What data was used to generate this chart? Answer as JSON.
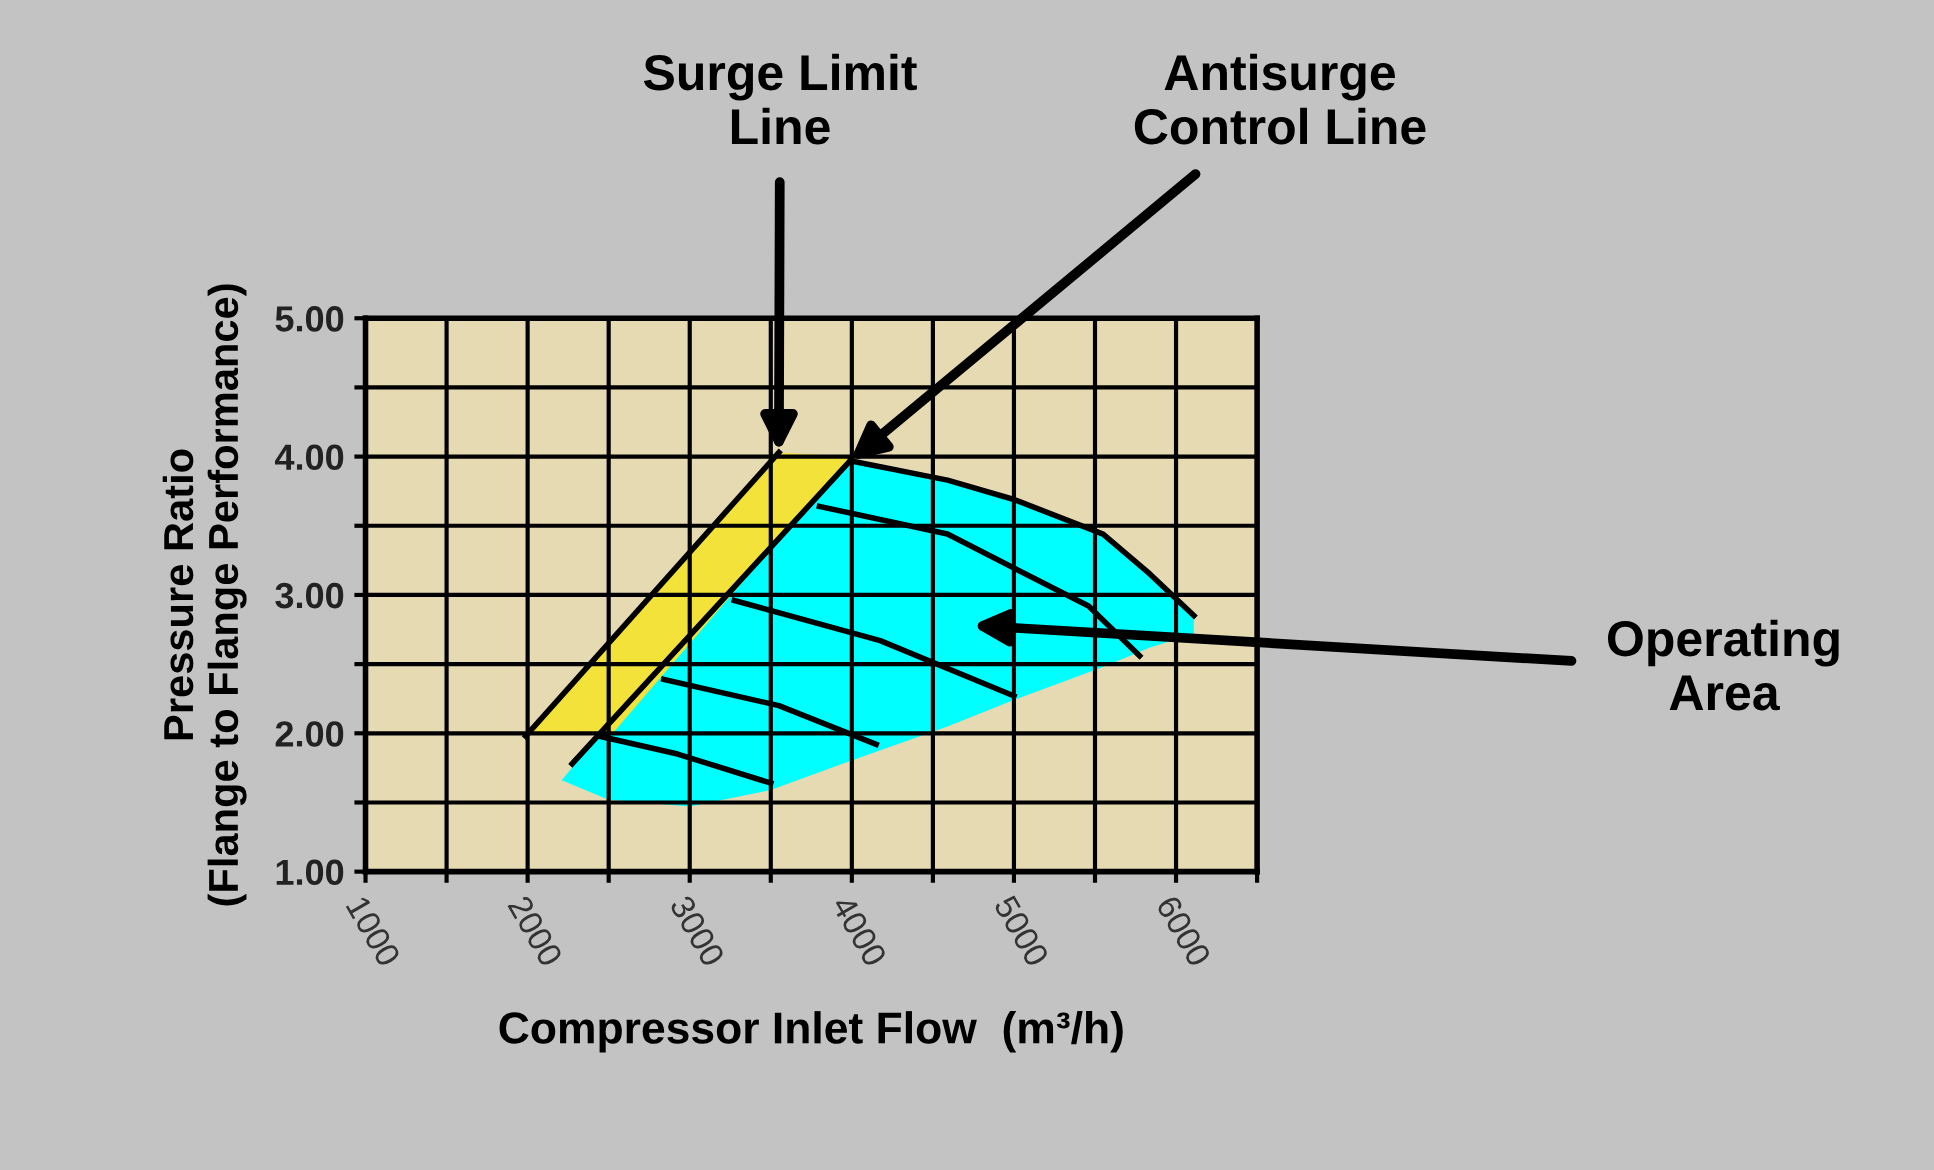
{
  "chart_data": {
    "type": "line",
    "xlabel": "Compressor Inlet Flow  (m³/h)",
    "ylabel": "Pressure Ratio\n(Flange to Flange Performance)",
    "xlim": [
      1000,
      6500
    ],
    "ylim": [
      1,
      5
    ],
    "xticks": [
      1000,
      {
        "value": 1500,
        "label": null
      },
      2000,
      {
        "value": 2500,
        "label": null
      },
      3000,
      {
        "value": 3500,
        "label": null
      },
      4000,
      {
        "value": 4500,
        "label": null
      },
      5000,
      {
        "value": 5500,
        "label": null
      },
      6000,
      {
        "value": 6500,
        "label": null
      }
    ],
    "yticks": [
      {
        "value": 1,
        "label": "1.00"
      },
      {
        "value": 1.5,
        "label": null
      },
      {
        "value": 2,
        "label": "2.00"
      },
      {
        "value": 2.5,
        "label": null
      },
      {
        "value": 3,
        "label": "3.00"
      },
      {
        "value": 3.5,
        "label": null
      },
      {
        "value": 4,
        "label": "4.00"
      },
      {
        "value": 4.5,
        "label": null
      },
      {
        "value": 5,
        "label": "5.00"
      }
    ],
    "grid": true,
    "marker": "none",
    "line_style": "solid",
    "series": [
      {
        "color": "#00ffff",
        "x": [
          2210,
          2500,
          3000,
          3500,
          3990,
          4590,
          5000,
          5550,
          5840,
          6110
        ],
        "values": [
          null,
          null,
          null,
          null,
          null,
          null,
          null,
          null,
          null,
          null
        ],
        "upper": [
          1.66,
          2.07,
          2.71,
          3.34,
          3.97,
          3.83,
          3.69,
          3.44,
          3.15,
          2.85
        ],
        "lower": [
          1.66,
          1.52,
          1.47,
          1.59,
          1.8,
          2.05,
          2.24,
          2.48,
          2.62,
          2.72
        ]
      },
      {
        "color": "#f2e23a",
        "x": [
          2000,
          2525,
          3550,
          3990
        ],
        "values": [
          null,
          null,
          null,
          null
        ],
        "upper": [
          2.0,
          2.69,
          4.03,
          4.0
        ],
        "lower": [
          2.0,
          2.0,
          3.4,
          4.0
        ]
      },
      {
        "color": "#000000",
        "x": [
          1988,
          3550
        ],
        "values": [
          1.98,
          4.03
        ]
      },
      {
        "color": "#000000",
        "x": [
          2275,
          3990
        ],
        "values": [
          1.78,
          3.97
        ]
      },
      {
        "color": "#000000",
        "x": [
          3990,
          4590,
          5000,
          5550,
          5840,
          6110
        ],
        "values": [
          3.97,
          3.83,
          3.69,
          3.44,
          3.15,
          2.85
        ]
      },
      {
        "color": "#000000",
        "x": [
          3800,
          4590,
          5460,
          5775
        ],
        "values": [
          3.64,
          3.44,
          2.92,
          2.56
        ]
      },
      {
        "color": "#000000",
        "x": [
          3275,
          4175,
          5000
        ],
        "values": [
          2.96,
          2.67,
          2.27
        ]
      },
      {
        "color": "#000000",
        "x": [
          2840,
          3550,
          4150
        ],
        "values": [
          2.39,
          2.2,
          1.92
        ]
      },
      {
        "color": "#000000",
        "x": [
          2440,
          2925,
          3500
        ],
        "values": [
          1.98,
          1.85,
          1.64
        ]
      }
    ],
    "annotations": [
      {
        "text": "Surge Limit\nLine",
        "x": 3550,
        "y": 4.03
      },
      {
        "text": "Antisurge\nControl Line",
        "x": 3990,
        "y": 3.97
      },
      "Operating\nArea"
    ]
  }
}
